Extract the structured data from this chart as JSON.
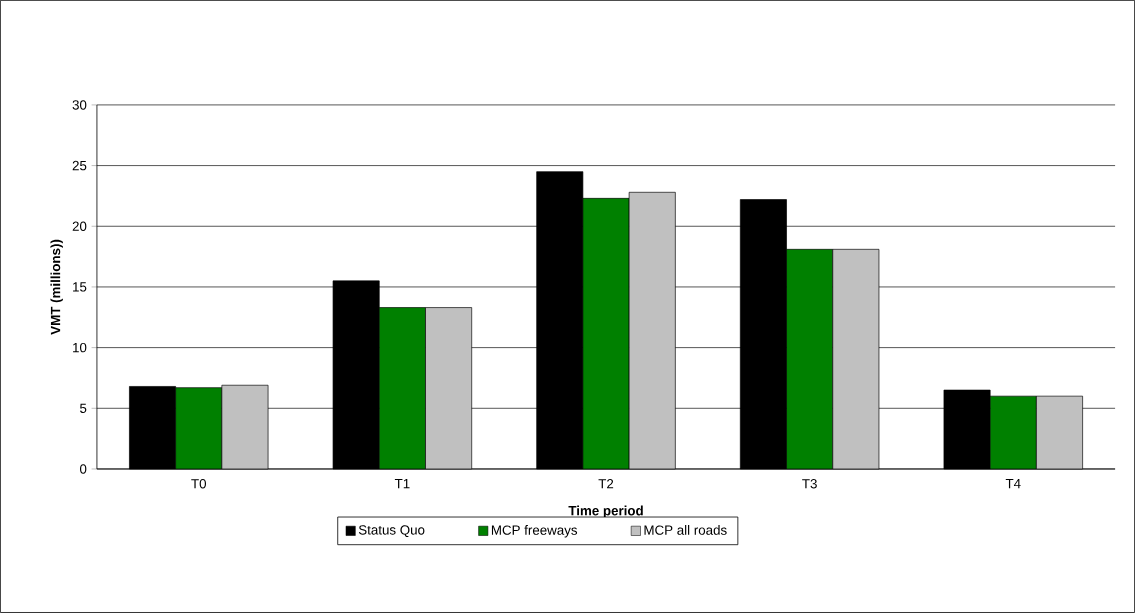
{
  "chart_data": {
    "type": "bar",
    "xlabel": "Time period",
    "ylabel": "VMT (millions))",
    "categories": [
      "T0",
      "T1",
      "T2",
      "T3",
      "T4"
    ],
    "series": [
      {
        "name": "Status Quo",
        "color": "#000000",
        "values": [
          6.8,
          15.5,
          24.5,
          22.2,
          6.5
        ]
      },
      {
        "name": "MCP freeways",
        "color": "#008000",
        "values": [
          6.7,
          13.3,
          22.3,
          18.1,
          6.0
        ]
      },
      {
        "name": "MCP all roads",
        "color": "#c0c0c0",
        "values": [
          6.9,
          13.3,
          22.8,
          18.1,
          6.0
        ]
      }
    ],
    "ylim": [
      0,
      30
    ],
    "yticks": [
      0,
      5,
      10,
      15,
      20,
      25,
      30
    ],
    "grid": "y",
    "legend": "bottom"
  }
}
